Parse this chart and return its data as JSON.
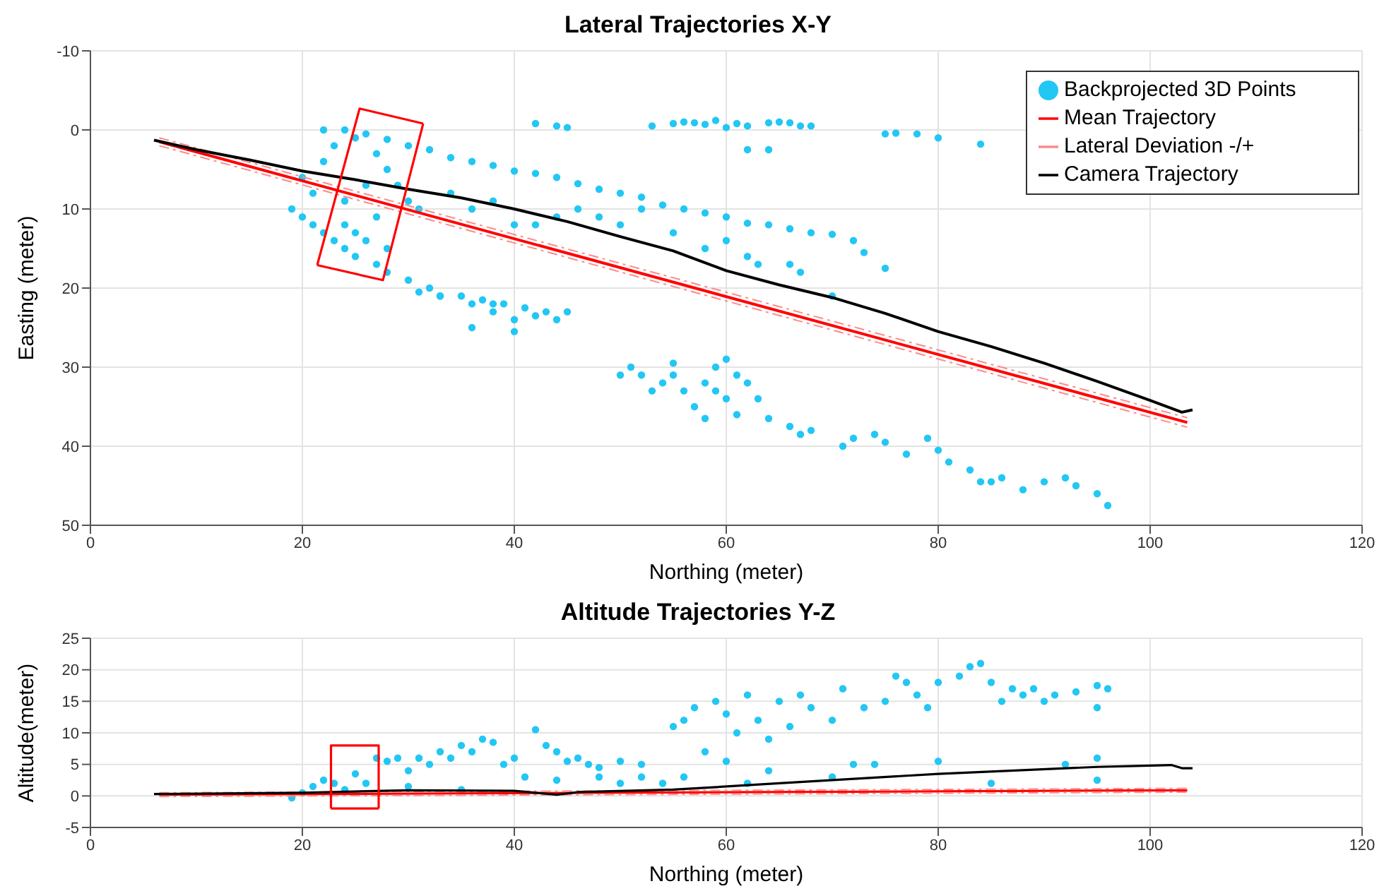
{
  "chart_data": [
    {
      "type": "scatter",
      "title": "Lateral Trajectories X-Y",
      "xlabel": "Northing (meter)",
      "ylabel": "Easting (meter)",
      "xlim": [
        0,
        120
      ],
      "xticks": [
        0,
        20,
        40,
        60,
        80,
        100,
        120
      ],
      "ylim": [
        50,
        -10
      ],
      "yticks": [
        -10,
        0,
        10,
        20,
        30,
        40,
        50
      ],
      "grid": true,
      "legend": "top right",
      "series": [
        {
          "name": "Backprojected 3D Points",
          "type": "scatter",
          "marker": "circle",
          "color": "#22c7f4",
          "x": [
            53,
            55,
            56,
            57,
            58,
            59,
            60,
            61,
            62,
            64,
            65,
            66,
            67,
            68,
            62,
            64,
            75,
            78,
            80,
            84,
            76,
            42,
            44,
            45,
            22,
            24,
            26,
            28,
            30,
            32,
            34,
            36,
            38,
            40,
            42,
            44,
            46,
            48,
            50,
            52,
            54,
            56,
            58,
            60,
            62,
            64,
            66,
            68,
            70,
            72,
            73,
            75,
            20,
            19,
            20,
            21,
            21,
            22,
            23,
            24,
            25,
            24,
            25,
            26,
            27,
            22,
            23,
            25,
            27,
            28,
            29,
            30,
            31,
            26,
            24,
            28,
            27,
            28,
            30,
            32,
            33,
            34,
            36,
            38,
            40,
            42,
            44,
            46,
            48,
            50,
            52,
            55,
            58,
            60,
            62,
            63,
            66,
            67,
            70,
            31,
            33,
            35,
            36,
            37,
            38,
            39,
            40,
            41,
            42,
            43,
            44,
            45,
            36,
            40,
            38,
            50,
            51,
            52,
            53,
            54,
            55,
            55,
            56,
            57,
            58,
            59,
            59,
            60,
            60,
            61,
            62,
            61,
            63,
            58,
            64,
            66,
            67,
            71,
            72,
            74,
            75,
            77,
            79,
            80,
            81,
            83,
            84,
            86,
            88,
            90,
            92,
            93,
            95,
            96,
            68,
            85
          ],
          "values": [
            -0.5,
            -0.8,
            -1,
            -0.9,
            -0.7,
            -1.2,
            -0.3,
            -0.8,
            -0.5,
            -0.9,
            -1,
            -0.9,
            -0.5,
            -0.5,
            2.5,
            2.5,
            0.5,
            0.5,
            1,
            1.8,
            0.4,
            -0.8,
            -0.5,
            -0.3,
            0,
            0,
            0.5,
            1.2,
            2,
            2.5,
            3.5,
            4,
            4.5,
            5.2,
            5.5,
            6,
            6.8,
            7.5,
            8,
            8.5,
            9.5,
            10,
            10.5,
            11,
            11.8,
            12,
            12.5,
            13,
            13.2,
            14,
            15.5,
            17.5,
            6,
            10,
            11,
            8,
            12,
            13,
            14,
            15,
            16,
            12,
            13,
            14,
            11,
            4,
            2,
            1,
            3,
            5,
            7,
            9,
            10,
            7,
            9,
            15,
            17,
            18,
            19,
            20,
            21,
            8,
            10,
            9,
            12,
            12,
            11,
            10,
            11,
            12,
            10,
            13,
            15,
            14,
            16,
            17,
            17,
            18,
            21,
            20.5,
            21,
            21,
            22,
            21.5,
            23,
            22,
            24,
            22.5,
            23.5,
            23,
            24,
            23,
            25,
            25.5,
            22,
            31,
            30,
            31,
            33,
            32,
            29.5,
            31,
            33,
            35,
            32,
            30,
            33,
            29,
            34,
            31,
            32,
            36,
            34,
            36.5,
            36.5,
            37.5,
            38.5,
            40,
            39,
            38.5,
            39.5,
            41,
            39,
            40.5,
            42,
            43,
            44.5,
            44,
            45.5,
            44.5,
            44,
            45,
            46,
            47.5,
            38,
            44.5
          ]
        },
        {
          "name": "Mean Trajectory",
          "type": "line",
          "color": "#ff0000",
          "x": [
            6.5,
            103.5
          ],
          "values": [
            1.5,
            37
          ]
        },
        {
          "name": "Lateral Deviation -/+",
          "type": "line",
          "line_style": "dashed",
          "color": "#ff8a8a",
          "x": [
            6.5,
            103.5
          ],
          "values": [
            1,
            36.4
          ]
        },
        {
          "type": "line",
          "line_style": "dashed",
          "color": "#ff8a8a",
          "x": [
            6.5,
            103.5
          ],
          "values": [
            2,
            37.6
          ]
        },
        {
          "name": "Camera Trajectory",
          "type": "line",
          "color": "#000000",
          "x": [
            6,
            10,
            15,
            20,
            25,
            30,
            35,
            40,
            45,
            50,
            55,
            60,
            65,
            70,
            75,
            80,
            85,
            90,
            95,
            100,
            103,
            104
          ],
          "values": [
            1.3,
            2.5,
            3.8,
            5.2,
            6.3,
            7.5,
            8.6,
            10,
            11.6,
            13.5,
            15.3,
            17.8,
            19.6,
            21.2,
            23.2,
            25.5,
            27.4,
            29.5,
            31.8,
            34.2,
            35.7,
            35.4
          ]
        },
        {
          "type": "line",
          "color": "#ff0000",
          "x": [
            21.4,
            25.4,
            31.4
          ],
          "values": [
            17.1,
            -2.7,
            -0.8
          ]
        },
        {
          "type": "line",
          "color": "#ff0000",
          "x": [
            21.4,
            27.6,
            31.4
          ],
          "values": [
            17.1,
            19,
            -0.8
          ]
        }
      ]
    },
    {
      "type": "scatter",
      "title": "Altitude Trajectories Y-Z",
      "xlabel": "Northing (meter)",
      "ylabel": "Altitude(meter)",
      "xlim": [
        0,
        120
      ],
      "xticks": [
        0,
        20,
        40,
        60,
        80,
        100,
        120
      ],
      "ylim": [
        -5,
        25
      ],
      "yticks": [
        -5,
        0,
        5,
        10,
        15,
        20,
        25
      ],
      "grid": true,
      "series": [
        {
          "type": "scatter",
          "marker": "circle",
          "color": "#22c7f4",
          "x": [
            19,
            20,
            21,
            22,
            23,
            24,
            25,
            26,
            27,
            28,
            29,
            30,
            31,
            32,
            33,
            34,
            35,
            36,
            37,
            38,
            39,
            40,
            41,
            42,
            43,
            44,
            45,
            46,
            47,
            48,
            50,
            52,
            54,
            55,
            56,
            57,
            58,
            59,
            60,
            61,
            62,
            63,
            64,
            65,
            66,
            67,
            68,
            70,
            71,
            73,
            75,
            76,
            77,
            78,
            79,
            80,
            82,
            83,
            84,
            85,
            86,
            87,
            88,
            89,
            90,
            91,
            93,
            95,
            96,
            95,
            60,
            64,
            72,
            80,
            92,
            95,
            50,
            56,
            62,
            70,
            74,
            85,
            95,
            30,
            35,
            44,
            48,
            52
          ],
          "values": [
            -0.3,
            0.5,
            1.5,
            2.5,
            2,
            1,
            3.5,
            2,
            6,
            5.5,
            6,
            4,
            6,
            5,
            7,
            6,
            8,
            7,
            9,
            8.5,
            5,
            6,
            3,
            10.5,
            8,
            7,
            5.5,
            6,
            5,
            4.5,
            5.5,
            5,
            2,
            11,
            12,
            14,
            7,
            15,
            13,
            10,
            16,
            12,
            9,
            15,
            11,
            16,
            14,
            12,
            17,
            14,
            15,
            19,
            18,
            16,
            14,
            18,
            19,
            20.5,
            21,
            18,
            15,
            17,
            16,
            17,
            15,
            16,
            16.5,
            17.5,
            17,
            14,
            5.5,
            4,
            5,
            5.5,
            5,
            6,
            2,
            3,
            2,
            3,
            5,
            2,
            2.5,
            1.5,
            1,
            2.5,
            3,
            3
          ]
        },
        {
          "type": "line",
          "color": "#ff0000",
          "x": [
            6.5,
            103.5
          ],
          "values": [
            0.2,
            0.9
          ]
        },
        {
          "type": "line",
          "line_style": "dashed",
          "color": "#ff8a8a",
          "x": [
            6.5,
            103.5
          ],
          "values": [
            -0.1,
            0.6
          ]
        },
        {
          "type": "line",
          "line_style": "dashed",
          "color": "#ff8a8a",
          "x": [
            6.5,
            103.5
          ],
          "values": [
            0.5,
            1.2
          ]
        },
        {
          "type": "line",
          "color": "#000000",
          "x": [
            6,
            20,
            30,
            40,
            44,
            46,
            55,
            65,
            80,
            95,
            100,
            102,
            103,
            104
          ],
          "values": [
            0.3,
            0.5,
            0.9,
            0.8,
            0.2,
            0.6,
            1,
            2,
            3.5,
            4.6,
            4.8,
            4.9,
            4.4,
            4.4
          ]
        },
        {
          "type": "line",
          "color": "#ff0000",
          "x": [
            22.7,
            22.7,
            27.2,
            27.2
          ],
          "values": [
            -2,
            8,
            8,
            -2
          ]
        },
        {
          "type": "line",
          "color": "#ff0000",
          "x": [
            22.7,
            27.2
          ],
          "values": [
            -2,
            -2
          ]
        }
      ]
    }
  ]
}
